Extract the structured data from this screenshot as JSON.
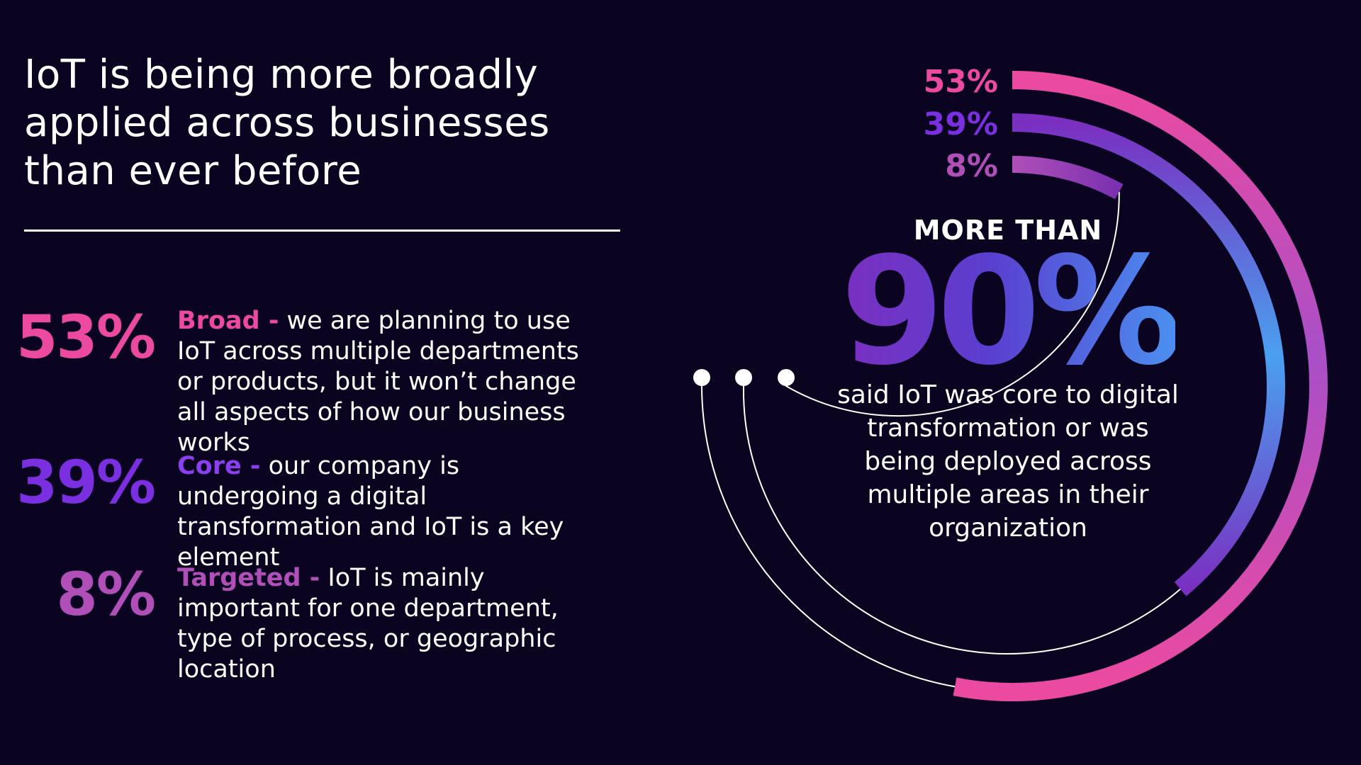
{
  "headline": "IoT is being more broadly applied across businesses than ever before",
  "colors": {
    "background": "#0a0420",
    "broad": "#ec4aa0",
    "core": "#7a2fe0",
    "targeted": "#b04fb8",
    "ring_blue": "#4a90f0"
  },
  "stats": [
    {
      "percent": "53%",
      "label": "Broad -",
      "text": " we are planning to use IoT across multiple departments or products, but it won’t change all aspects of how our business works"
    },
    {
      "percent": "39%",
      "label": "Core -",
      "text": " our company is undergoing a digital transformation and IoT is a key element"
    },
    {
      "percent": "8%",
      "label": "Targeted -",
      "text": " IoT is mainly important for one department, type of process, or geographic location"
    }
  ],
  "callout": {
    "prefix": "MORE THAN",
    "value": "90%",
    "description": "said IoT was core to digital transformation or was being deployed across multiple areas in their organization"
  },
  "chart_data": {
    "type": "radial-bar",
    "title": "",
    "categories": [
      "Broad",
      "Core",
      "Targeted"
    ],
    "values": [
      53,
      39,
      8
    ],
    "value_labels": [
      "53%",
      "39%",
      "8%"
    ],
    "unit": "%",
    "max": 100
  }
}
